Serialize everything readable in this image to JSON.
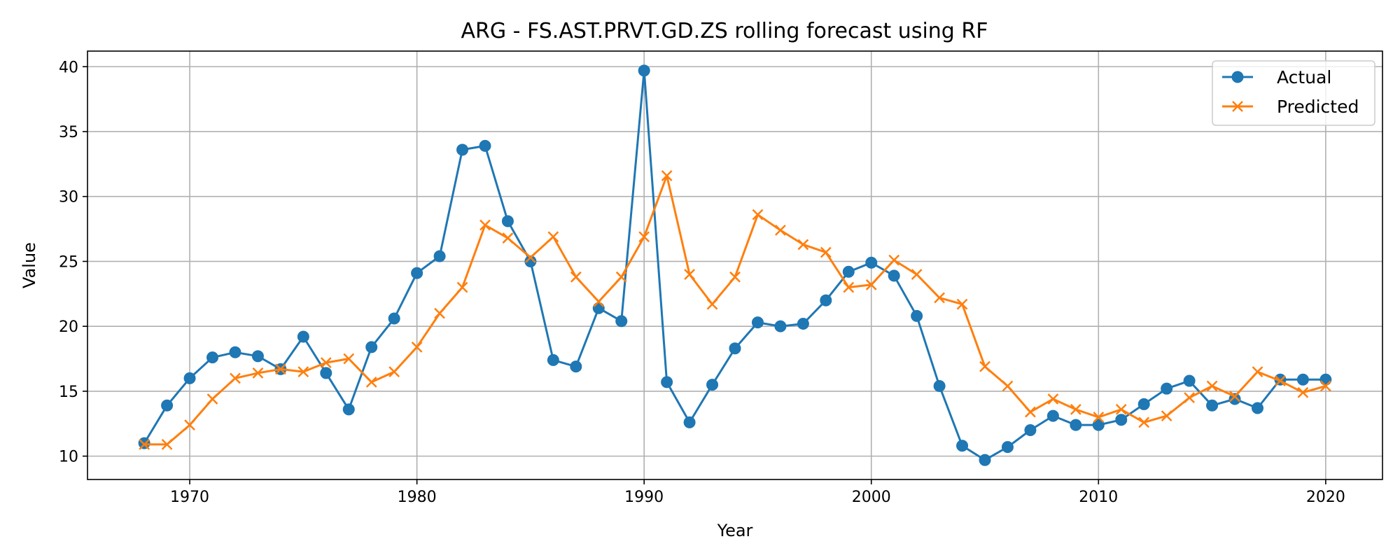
{
  "chart_data": {
    "type": "line",
    "title": "ARG - FS.AST.PRVT.GD.ZS rolling forecast using RF",
    "xlabel": "Year",
    "ylabel": "Value",
    "xlim": [
      1965.5,
      2022.5
    ],
    "ylim": [
      8.2,
      41.2
    ],
    "x_ticks": [
      1970,
      1980,
      1990,
      2000,
      2010,
      2020
    ],
    "y_ticks": [
      10,
      15,
      20,
      25,
      30,
      35,
      40
    ],
    "grid": true,
    "legend_position": "upper right",
    "x": [
      1968,
      1969,
      1970,
      1971,
      1972,
      1973,
      1974,
      1975,
      1976,
      1977,
      1978,
      1979,
      1980,
      1981,
      1982,
      1983,
      1984,
      1985,
      1986,
      1987,
      1988,
      1989,
      1990,
      1991,
      1992,
      1993,
      1994,
      1995,
      1996,
      1997,
      1998,
      1999,
      2000,
      2001,
      2002,
      2003,
      2004,
      2005,
      2006,
      2007,
      2008,
      2009,
      2010,
      2011,
      2012,
      2013,
      2014,
      2015,
      2016,
      2017,
      2018,
      2019,
      2020
    ],
    "series": [
      {
        "name": "Actual",
        "color": "#1f77b4",
        "marker": "circle",
        "values": [
          11.0,
          13.9,
          16.0,
          17.6,
          18.0,
          17.7,
          16.7,
          19.2,
          16.4,
          13.6,
          18.4,
          20.6,
          24.1,
          25.4,
          33.6,
          33.9,
          28.1,
          25.0,
          17.4,
          16.9,
          21.4,
          20.4,
          39.7,
          15.7,
          12.6,
          15.5,
          18.3,
          20.3,
          20.0,
          20.2,
          22.0,
          24.2,
          24.9,
          23.9,
          20.8,
          15.4,
          10.8,
          9.7,
          10.7,
          12.0,
          13.1,
          12.4,
          12.4,
          12.8,
          14.0,
          15.2,
          15.8,
          13.9,
          14.4,
          13.7,
          15.9,
          15.9,
          15.9
        ]
      },
      {
        "name": "Predicted",
        "color": "#ff7f0e",
        "marker": "x",
        "values": [
          10.9,
          10.9,
          12.4,
          14.4,
          16.0,
          16.4,
          16.7,
          16.5,
          17.2,
          17.5,
          15.7,
          16.5,
          18.4,
          21.0,
          23.0,
          27.8,
          26.8,
          25.3,
          26.9,
          23.8,
          21.9,
          23.8,
          26.9,
          31.6,
          24.0,
          21.7,
          23.8,
          28.6,
          27.4,
          26.3,
          25.7,
          23.0,
          23.2,
          25.1,
          24.0,
          22.2,
          21.7,
          16.9,
          15.4,
          13.4,
          14.4,
          13.6,
          13.0,
          13.6,
          12.6,
          13.1,
          14.5,
          15.4,
          14.6,
          16.5,
          15.8,
          14.9,
          15.4
        ]
      }
    ]
  }
}
